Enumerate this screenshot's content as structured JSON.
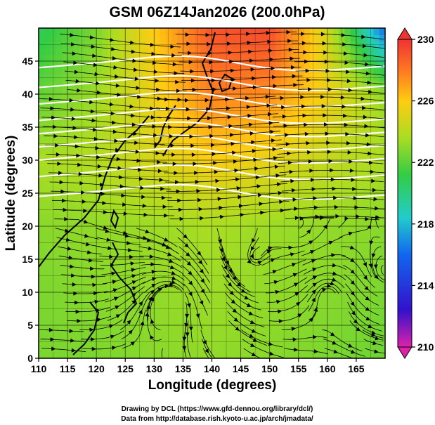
{
  "title": "GSM 06Z14Jan2026 (200.0hPa)",
  "credits": {
    "line1": "Drawing by DCL (https://www.gfd-dennou.org/library/dcl/)",
    "line2": "Data from http://database.rish.kyoto-u.ac.jp/arch/jmadata/"
  },
  "chart_data": {
    "type": "heatmap",
    "title": "GSM 06Z14Jan2026 (200.0hPa)",
    "xlabel": "Longitude (degrees)",
    "ylabel": "Latitude  (degrees)",
    "xlim": [
      110,
      170
    ],
    "ylim": [
      0,
      50
    ],
    "x_ticks": [
      "110",
      "115",
      "120",
      "125",
      "130",
      "135",
      "140",
      "145",
      "150",
      "155",
      "160",
      "165"
    ],
    "y_ticks": [
      "0",
      "5",
      "10",
      "15",
      "20",
      "25",
      "30",
      "35",
      "40",
      "45"
    ],
    "grid": true,
    "colorbar": {
      "min": 210,
      "max": 230,
      "ticks": [
        "210",
        "214",
        "218",
        "222",
        "226",
        "230"
      ],
      "colors": [
        "#dd22aa",
        "#3311cc",
        "#1166ee",
        "#22cccc",
        "#33cc44",
        "#aadd22",
        "#ffcc11",
        "#ff7722",
        "#ee3333"
      ],
      "extend": "both"
    },
    "field": "temperature",
    "overlays": [
      "wind streamlines",
      "white isotach contours"
    ],
    "temperature_grid": {
      "lon": [
        110,
        120,
        130,
        140,
        150,
        160,
        170
      ],
      "lat": [
        0,
        10,
        20,
        30,
        40,
        50
      ],
      "values": [
        [
          221.5,
          221.5,
          221.8,
          222.0,
          221.8,
          221.5,
          221.2
        ],
        [
          221.5,
          221.8,
          222.0,
          222.2,
          222.0,
          221.8,
          221.5
        ],
        [
          221.8,
          222.0,
          222.2,
          222.5,
          222.2,
          222.0,
          221.8
        ],
        [
          222.5,
          222.8,
          223.8,
          224.8,
          224.2,
          223.2,
          222.5
        ],
        [
          221.0,
          222.2,
          224.5,
          227.2,
          226.8,
          224.5,
          222.0
        ],
        [
          219.5,
          221.5,
          225.0,
          228.8,
          229.2,
          223.5,
          215.0
        ]
      ]
    },
    "isotach_lats": [
      24.5,
      27.5,
      30,
      32,
      34,
      36,
      38.5,
      41,
      44
    ]
  }
}
